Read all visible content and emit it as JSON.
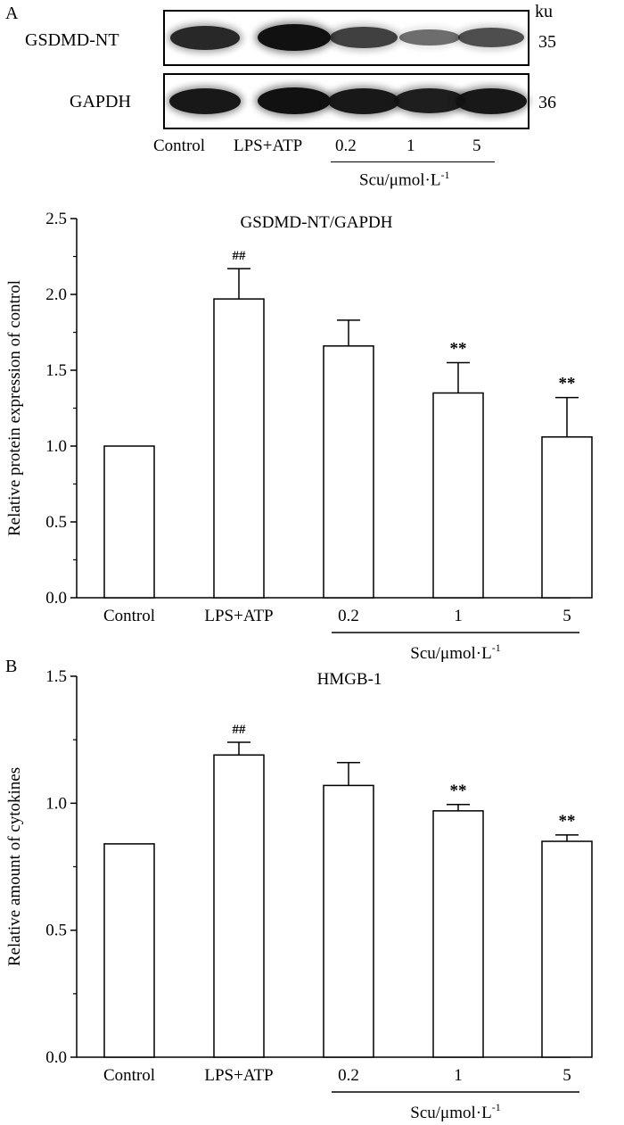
{
  "panel_a": {
    "label": "A",
    "blot": {
      "unit": "ku",
      "rows": [
        {
          "protein": "GSDMD-NT",
          "size": "35",
          "intensity": [
            0.85,
            1.0,
            0.7,
            0.4,
            0.6
          ]
        },
        {
          "protein": "GAPDH",
          "size": "36",
          "intensity": [
            0.95,
            1.0,
            0.95,
            0.9,
            0.95
          ]
        }
      ],
      "lanes": [
        "Control",
        "LPS+ATP",
        "0.2",
        "1",
        "5"
      ],
      "group_label": "Scu/μmol·L",
      "group_label_sup": "-1"
    }
  },
  "panel_b": {
    "label": "B"
  },
  "chart_data": [
    {
      "type": "bar",
      "title": "GSDMD-NT/GAPDH",
      "ylabel": "Relative protein expression of control",
      "xlabel": "",
      "categories": [
        "Control",
        "LPS+ATP",
        "0.2",
        "1",
        "5"
      ],
      "values": [
        1.0,
        1.97,
        1.66,
        1.35,
        1.06
      ],
      "errors": [
        0,
        0.2,
        0.17,
        0.2,
        0.26
      ],
      "annotations": [
        "",
        "##",
        "",
        "**",
        "**"
      ],
      "ylim": [
        0,
        2.5
      ],
      "yticks": [
        "0.0",
        "0.5",
        "1.0",
        "1.5",
        "2.0",
        "2.5"
      ],
      "group_label": "Scu/μmol·L",
      "group_label_sup": "-1",
      "grid": false
    },
    {
      "type": "bar",
      "title": "HMGB-1",
      "ylabel": "Relative amount of cytokines",
      "xlabel": "",
      "categories": [
        "Control",
        "LPS+ATP",
        "0.2",
        "1",
        "5"
      ],
      "values": [
        0.84,
        1.19,
        1.07,
        0.97,
        0.85
      ],
      "errors": [
        0,
        0.05,
        0.09,
        0.025,
        0.025
      ],
      "annotations": [
        "",
        "##",
        "",
        "**",
        "**"
      ],
      "ylim": [
        0,
        1.5
      ],
      "yticks": [
        "0.0",
        "0.5",
        "1.0",
        "1.5"
      ],
      "group_label": "Scu/μmol·L",
      "group_label_sup": "-1",
      "grid": false
    }
  ]
}
